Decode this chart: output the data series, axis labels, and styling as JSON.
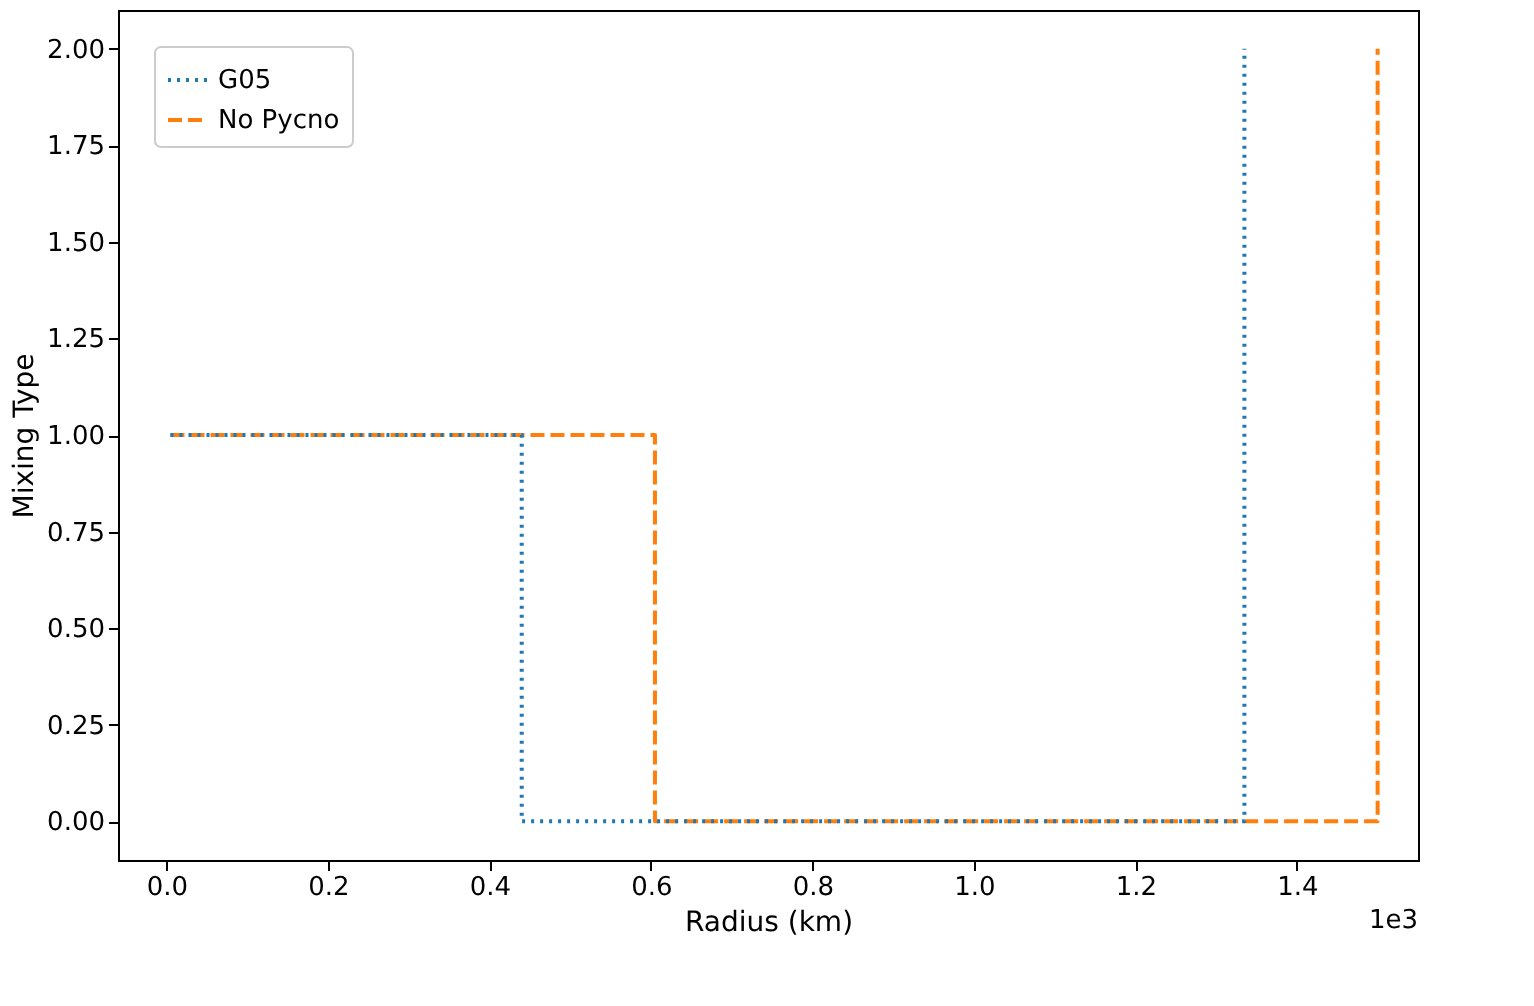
{
  "chart_data": {
    "type": "line",
    "xlabel": "Radius (km)",
    "ylabel": "Mixing Type",
    "annotations": [
      "1e3"
    ],
    "xlim": [
      -0.06,
      1.55
    ],
    "ylim": [
      -0.1,
      2.1
    ],
    "xticks": [
      {
        "value": 0,
        "label": "0.0"
      },
      {
        "value": 0.2,
        "label": "0.2"
      },
      {
        "value": 0.4,
        "label": "0.4"
      },
      {
        "value": 0.6,
        "label": "0.6"
      },
      {
        "value": 0.8,
        "label": "0.8"
      },
      {
        "value": 1.0,
        "label": "1.0"
      },
      {
        "value": 1.2,
        "label": "1.2"
      },
      {
        "value": 1.4,
        "label": "1.4"
      }
    ],
    "yticks": [
      {
        "value": 0,
        "label": "0.00"
      },
      {
        "value": 0.25,
        "label": "0.25"
      },
      {
        "value": 0.5,
        "label": "0.50"
      },
      {
        "value": 0.75,
        "label": "0.75"
      },
      {
        "value": 1.0,
        "label": "1.00"
      },
      {
        "value": 1.25,
        "label": "1.25"
      },
      {
        "value": 1.5,
        "label": "1.50"
      },
      {
        "value": 1.75,
        "label": "1.75"
      },
      {
        "value": 2.0,
        "label": "2.00"
      }
    ],
    "grid": false,
    "legend": "top left",
    "marker": "none",
    "series": [
      {
        "name": "G05",
        "color": "#1f77b4",
        "line_style": "dotted",
        "x": [
          0.005,
          0.44,
          0.44,
          1.335,
          1.335
        ],
        "values": [
          1,
          1,
          0,
          0,
          2
        ]
      },
      {
        "name": "No Pycno",
        "color": "#ff7f0e",
        "line_style": "dashed",
        "x": [
          0.005,
          0.605,
          0.605,
          1.5,
          1.5
        ],
        "values": [
          1,
          1,
          0,
          0,
          2
        ]
      }
    ]
  }
}
